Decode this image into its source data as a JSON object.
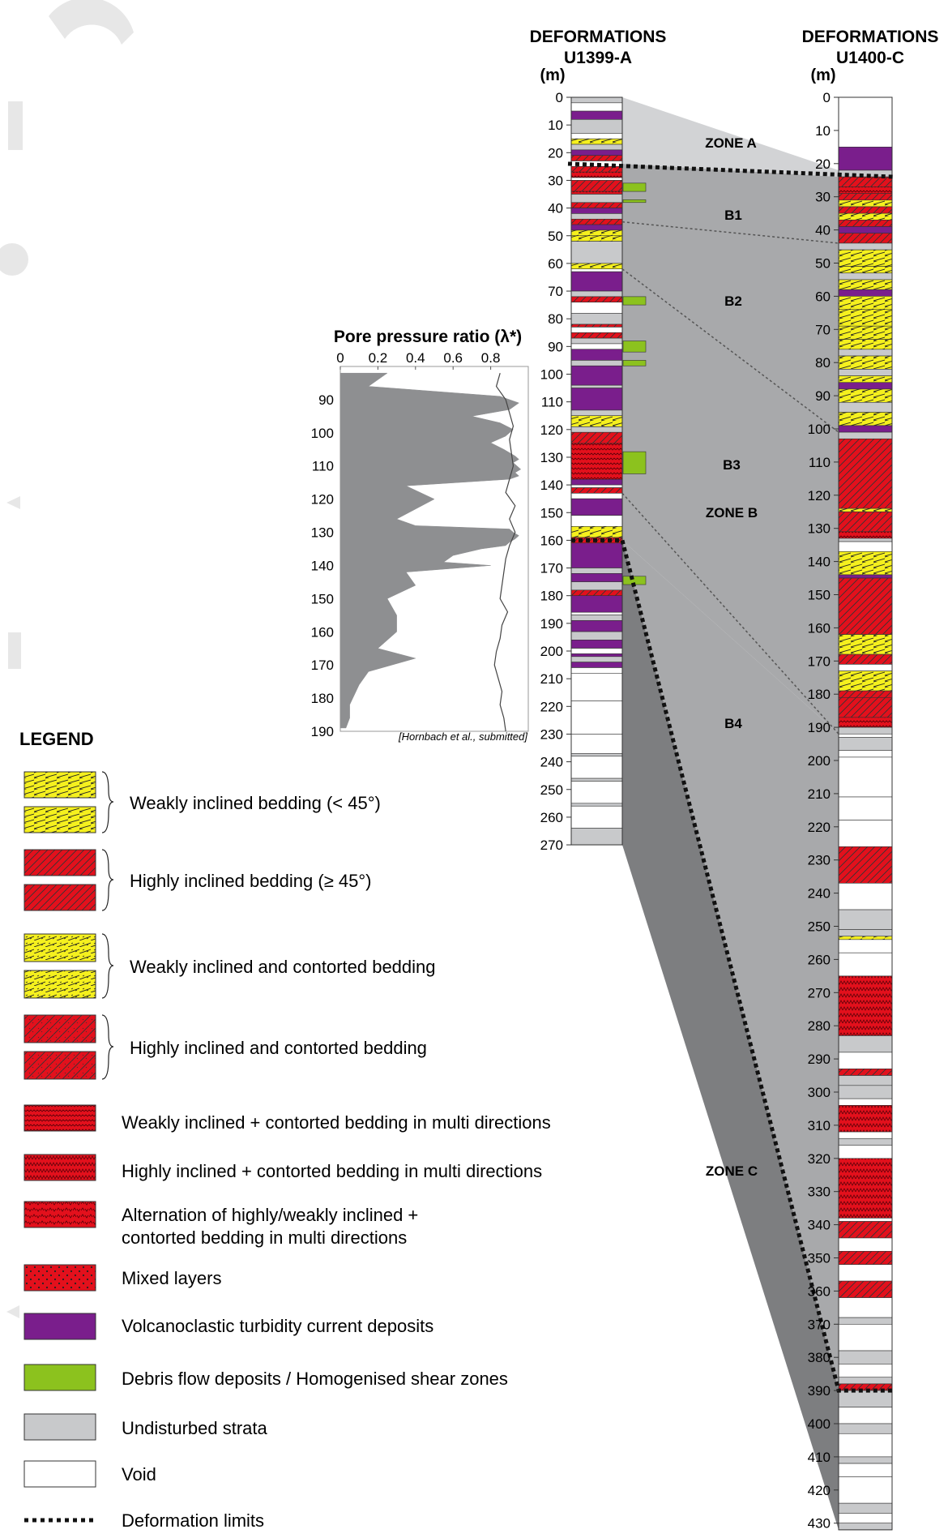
{
  "columns": [
    {
      "title_line1": "DEFORMATIONS",
      "title_line2": "U1399-A",
      "unit": "(m)"
    },
    {
      "title_line1": "DEFORMATIONS",
      "title_line2": "U1400-C",
      "unit": "(m)"
    }
  ],
  "depth_ticks_a": [
    "0",
    "10",
    "20",
    "30",
    "40",
    "50",
    "60",
    "70",
    "80",
    "90",
    "100",
    "110",
    "120",
    "130",
    "140",
    "150",
    "160",
    "170",
    "180",
    "190",
    "200",
    "210",
    "220",
    "230",
    "240",
    "250",
    "260",
    "270"
  ],
  "depth_ticks_c": [
    "0",
    "10",
    "20",
    "30",
    "40",
    "50",
    "60",
    "70",
    "80",
    "90",
    "100",
    "110",
    "120",
    "130",
    "140",
    "150",
    "160",
    "170",
    "180",
    "190",
    "200",
    "210",
    "220",
    "230",
    "240",
    "250",
    "260",
    "270",
    "280",
    "290",
    "300",
    "310",
    "320",
    "330",
    "340",
    "350",
    "360",
    "370",
    "380",
    "390",
    "400",
    "410",
    "420",
    "430"
  ],
  "zones": {
    "zone_a": "ZONE A",
    "b1": "B1",
    "b2": "B2",
    "b3": "B3",
    "zone_b": "ZONE B",
    "b4": "B4",
    "zone_c": "ZONE C"
  },
  "pore_chart": {
    "title": "Pore pressure ratio (λ*)",
    "x_ticks": [
      "0",
      "0.2",
      "0.4",
      "0.6",
      "0.8"
    ],
    "y_ticks": [
      "90",
      "100",
      "110",
      "120",
      "130",
      "140",
      "150",
      "160",
      "170",
      "180",
      "190"
    ],
    "citation": "[Hornbach et al., submitted]"
  },
  "chart_data": {
    "type": "area",
    "title": "Pore pressure ratio (λ*)",
    "xlabel": "Pore pressure ratio (λ*)",
    "ylabel": "",
    "xlim": [
      0,
      1.0
    ],
    "ylim": [
      190,
      80
    ],
    "series": [
      {
        "kind": "area",
        "depth": [
          82,
          86,
          89,
          91,
          93,
          95,
          97,
          99,
          101,
          103,
          105,
          107,
          108,
          109,
          110,
          111,
          112,
          113,
          114,
          116,
          120,
          123,
          126,
          128,
          129,
          130,
          131,
          132,
          133,
          134,
          135,
          137,
          139,
          140,
          142,
          146,
          150,
          155,
          160,
          165,
          168,
          172,
          176,
          182,
          186,
          189
        ],
        "values": [
          0.25,
          0.15,
          0.85,
          0.95,
          0.9,
          0.7,
          0.85,
          0.92,
          0.88,
          0.8,
          0.87,
          0.93,
          0.95,
          0.92,
          0.94,
          0.96,
          0.93,
          0.95,
          0.9,
          0.35,
          0.5,
          0.4,
          0.3,
          0.4,
          0.9,
          0.92,
          0.95,
          0.93,
          0.9,
          0.88,
          0.75,
          0.6,
          0.55,
          0.8,
          0.35,
          0.4,
          0.25,
          0.3,
          0.3,
          0.2,
          0.4,
          0.15,
          0.1,
          0.05,
          0.05,
          0.03
        ]
      },
      {
        "kind": "line",
        "depth": [
          82,
          86,
          90,
          94,
          98,
          102,
          106,
          110,
          114,
          118,
          122,
          126,
          130,
          134,
          138,
          142,
          146,
          150,
          154,
          158,
          162,
          166,
          170,
          174,
          178,
          182,
          186,
          190
        ],
        "values": [
          0.85,
          0.83,
          0.88,
          0.9,
          0.92,
          0.9,
          0.91,
          0.92,
          0.9,
          0.88,
          0.93,
          0.9,
          0.93,
          0.9,
          0.88,
          0.87,
          0.86,
          0.85,
          0.89,
          0.86,
          0.85,
          0.83,
          0.82,
          0.84,
          0.86,
          0.85,
          0.87,
          0.88
        ]
      }
    ]
  },
  "legend": {
    "title": "LEGEND",
    "items": [
      {
        "label": "Weakly inclined bedding (< 45°)"
      },
      {
        "label": "Highly inclined bedding (≥ 45°)"
      },
      {
        "label": "Weakly inclined and contorted bedding"
      },
      {
        "label": "Highly inclined and contorted bedding"
      },
      {
        "label": "Weakly inclined + contorted bedding in multi directions"
      },
      {
        "label": "Highly inclined + contorted bedding in multi directions"
      },
      {
        "label": "Alternation of highly/weakly inclined +",
        "label2": "contorted bedding in multi directions"
      },
      {
        "label": "Mixed layers"
      },
      {
        "label": "Volcanoclastic turbidity current deposits"
      },
      {
        "label": "Debris flow deposits / Homogenised shear zones"
      },
      {
        "label": "Undisturbed strata"
      },
      {
        "label": "Void"
      },
      {
        "label": "Deformation limits"
      }
    ]
  },
  "colors": {
    "yellow": "#f5f01e",
    "red": "#e3101c",
    "purple": "#7a1e8c",
    "green": "#8cc21e",
    "grey": "#c8c9cb",
    "zone_a_fill": "#d2d3d5",
    "zone_b_fill": "#a8a9ab",
    "zone_c_fill": "#7d7e80"
  }
}
